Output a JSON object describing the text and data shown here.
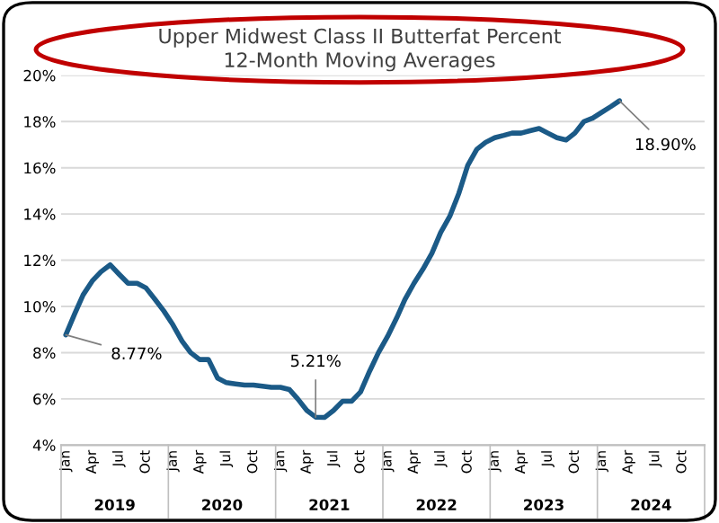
{
  "chart_data": {
    "type": "line",
    "title": "Upper Midwest Class II Butterfat Percent\n12-Month Moving Averages",
    "x": [
      "2019-01",
      "2019-02",
      "2019-03",
      "2019-04",
      "2019-05",
      "2019-06",
      "2019-07",
      "2019-08",
      "2019-09",
      "2019-10",
      "2019-11",
      "2019-12",
      "2020-01",
      "2020-02",
      "2020-03",
      "2020-04",
      "2020-05",
      "2020-06",
      "2020-07",
      "2020-08",
      "2020-09",
      "2020-10",
      "2020-11",
      "2020-12",
      "2021-01",
      "2021-02",
      "2021-03",
      "2021-04",
      "2021-05",
      "2021-06",
      "2021-07",
      "2021-08",
      "2021-09",
      "2021-10",
      "2021-11",
      "2021-12",
      "2022-01",
      "2022-02",
      "2022-03",
      "2022-04",
      "2022-05",
      "2022-06",
      "2022-07",
      "2022-08",
      "2022-09",
      "2022-10",
      "2022-11",
      "2022-12",
      "2023-01",
      "2023-02",
      "2023-03",
      "2023-04",
      "2023-05",
      "2023-06",
      "2023-07",
      "2023-08",
      "2023-09",
      "2023-10",
      "2023-11",
      "2023-12",
      "2024-01",
      "2024-02",
      "2024-03"
    ],
    "series": [
      {
        "color": "#1b5a87",
        "values": [
          8.77,
          9.7,
          10.5,
          11.1,
          11.5,
          11.8,
          11.4,
          11.0,
          11.0,
          10.8,
          10.3,
          9.8,
          9.2,
          8.5,
          8.0,
          7.7,
          7.7,
          6.9,
          6.7,
          6.65,
          6.6,
          6.6,
          6.55,
          6.5,
          6.5,
          6.4,
          6.0,
          5.5,
          5.21,
          5.2,
          5.5,
          5.9,
          5.9,
          6.3,
          7.2,
          8.0,
          8.7,
          9.5,
          10.3,
          11.0,
          11.6,
          12.3,
          13.2,
          13.9,
          14.9,
          16.1,
          16.8,
          17.1,
          17.3,
          17.4,
          17.5,
          17.5,
          17.6,
          17.7,
          17.5,
          17.3,
          17.2,
          17.5,
          18.0,
          18.15,
          18.4,
          18.65,
          18.9
        ]
      }
    ],
    "xlim": [
      "2018-12-16",
      "2024-12-16"
    ],
    "xticks": [
      {
        "value": "2019-01",
        "label": "Jan"
      },
      {
        "value": "2019-04",
        "label": "Apr"
      },
      {
        "value": "2019-07",
        "label": "Jul"
      },
      {
        "value": "2019-10",
        "label": "Oct"
      },
      {
        "value": "2020-01",
        "label": "Jan"
      },
      {
        "value": "2020-04",
        "label": "Apr"
      },
      {
        "value": "2020-07",
        "label": "Jul"
      },
      {
        "value": "2020-10",
        "label": "Oct"
      },
      {
        "value": "2021-01",
        "label": "Jan"
      },
      {
        "value": "2021-04",
        "label": "Apr"
      },
      {
        "value": "2021-07",
        "label": "Jul"
      },
      {
        "value": "2021-10",
        "label": "Oct"
      },
      {
        "value": "2022-01",
        "label": "Jan"
      },
      {
        "value": "2022-04",
        "label": "Apr"
      },
      {
        "value": "2022-07",
        "label": "Jul"
      },
      {
        "value": "2022-10",
        "label": "Oct"
      },
      {
        "value": "2023-01",
        "label": "Jan"
      },
      {
        "value": "2023-04",
        "label": "Apr"
      },
      {
        "value": "2023-07",
        "label": "Jul"
      },
      {
        "value": "2023-10",
        "label": "Oct"
      },
      {
        "value": "2024-01",
        "label": "Jan"
      },
      {
        "value": "2024-04",
        "label": "Apr"
      },
      {
        "value": "2024-07",
        "label": "Jul"
      },
      {
        "value": "2024-10",
        "label": "Oct"
      }
    ],
    "ylim": [
      4,
      20
    ],
    "yticks": [
      {
        "value": 4,
        "label": "4%"
      },
      {
        "value": 6,
        "label": "6%"
      },
      {
        "value": 8,
        "label": "8%"
      },
      {
        "value": 10,
        "label": "10%"
      },
      {
        "value": 12,
        "label": "12%"
      },
      {
        "value": 14,
        "label": "14%"
      },
      {
        "value": 16,
        "label": "16%"
      },
      {
        "value": 18,
        "label": "18%"
      },
      {
        "value": 20,
        "label": "20%"
      }
    ],
    "grid": "y",
    "marker": "none",
    "line_style": "solid",
    "annotations": [
      {
        "text": "8.77%",
        "x": "2019-01",
        "y": 8.77
      },
      {
        "text": "5.21%",
        "x": "2021-05",
        "y": 5.21
      },
      {
        "text": "18.90%",
        "x": "2024-03",
        "y": 18.9
      },
      "2019",
      "2020",
      "2021",
      "2022",
      "2023",
      "2024"
    ]
  }
}
